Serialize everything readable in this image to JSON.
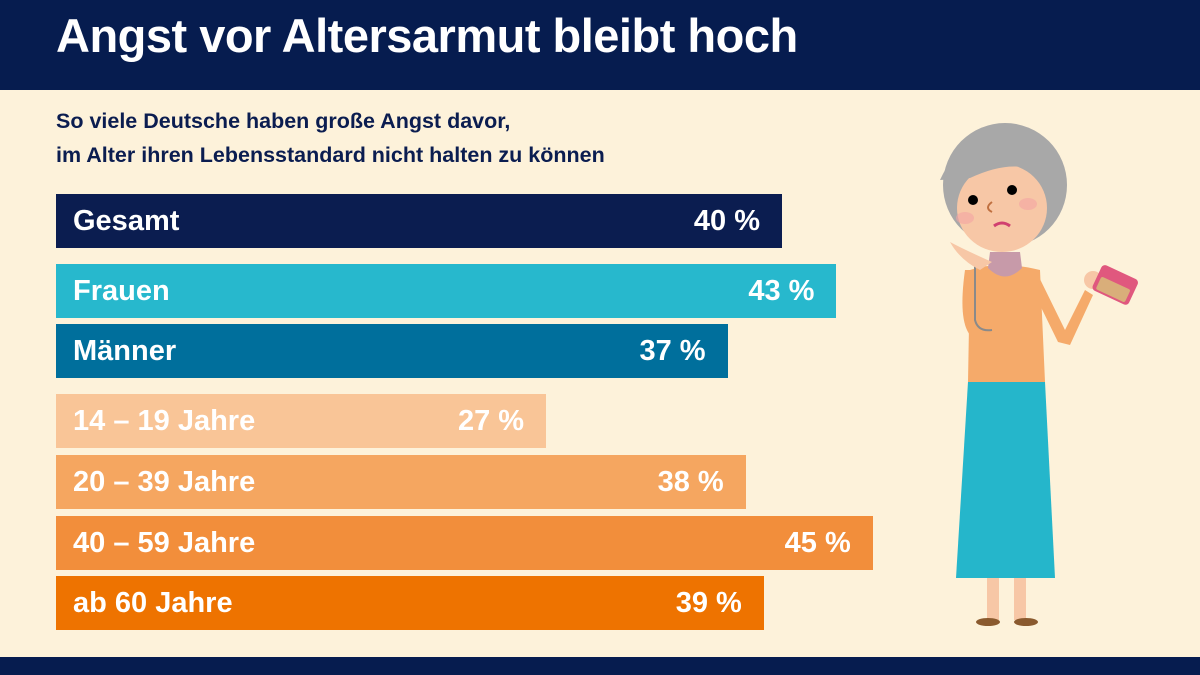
{
  "header": {
    "title": "Angst vor Altersarmut bleibt hoch"
  },
  "subtitle": [
    "So viele Deutsche haben große Angst davor,",
    "im Alter ihren Lebensstandard nicht halten zu können"
  ],
  "chart_data": {
    "type": "bar",
    "orientation": "horizontal",
    "title": "Angst vor Altersarmut bleibt hoch",
    "subtitle": "So viele Deutsche haben große Angst davor, im Alter ihren Lebensstandard nicht halten zu können",
    "unit": "%",
    "categories": [
      "Gesamt",
      "Frauen",
      "Männer",
      "14 – 19 Jahre",
      "20 – 39 Jahre",
      "40 – 59 Jahre",
      "ab 60 Jahre"
    ],
    "values": [
      40,
      43,
      37,
      27,
      38,
      45,
      39
    ],
    "value_labels": [
      "40 %",
      "43 %",
      "37 %",
      "27 %",
      "38 %",
      "45 %",
      "39 %"
    ],
    "colors": [
      "#0b1d50",
      "#27b8cd",
      "#006f9c",
      "#f9c597",
      "#f5a660",
      "#f28e3b",
      "#ee7300"
    ],
    "grid": false,
    "legend": "none"
  },
  "colors": {
    "header": "#061c4f",
    "background": "#fdf2da"
  },
  "illustration": "worried-elderly-woman-with-wallet"
}
